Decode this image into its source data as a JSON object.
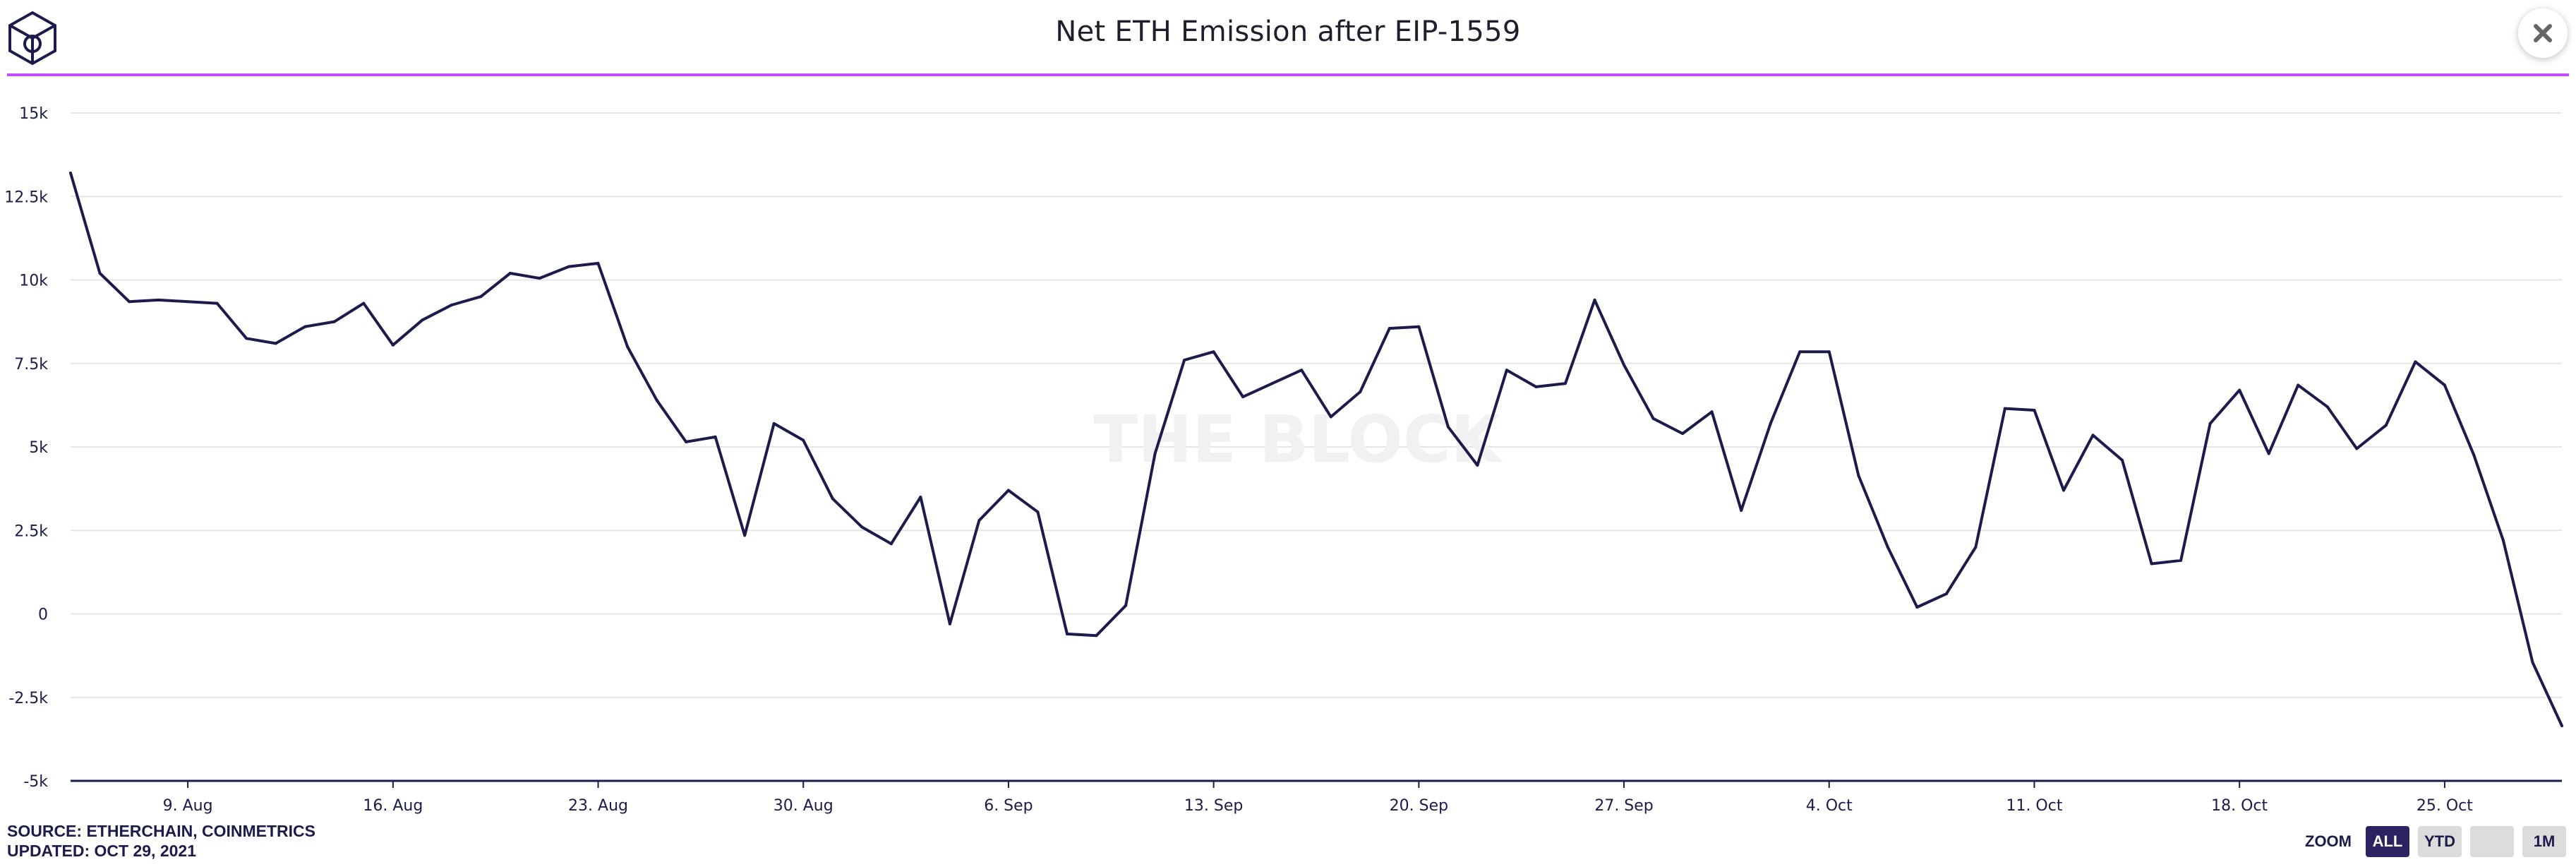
{
  "header": {
    "title": "Net ETH Emission after EIP-1559",
    "close_icon": "close-icon",
    "logo_icon": "the-block-cube-logo-icon"
  },
  "watermark": "THE BLOCK",
  "footer": {
    "source": "SOURCE: ETHERCHAIN, COINMETRICS",
    "updated": "UPDATED: OCT 29, 2021"
  },
  "zoom": {
    "label": "ZOOM",
    "buttons": [
      {
        "label": "ALL",
        "active": true
      },
      {
        "label": "YTD",
        "active": false
      },
      {
        "label": "",
        "active": false
      },
      {
        "label": "1M",
        "active": false
      }
    ]
  },
  "colors": {
    "line": "#1d1b4c",
    "accent": "#c44dff",
    "active_button": "#2a235f"
  },
  "chart_data": {
    "type": "line",
    "title": "Net ETH Emission after EIP-1559",
    "x_start": "2021-08-05",
    "x_end": "2021-10-29",
    "ylim": [
      -5000,
      15000
    ],
    "y_ticks": [
      -5000,
      -2500,
      0,
      2500,
      5000,
      7500,
      10000,
      12500,
      15000
    ],
    "y_tick_labels": [
      "-5k",
      "-2.5k",
      "0",
      "2.5k",
      "5k",
      "7.5k",
      "10k",
      "12.5k",
      "15k"
    ],
    "x_ticks": [
      "2021-08-09",
      "2021-08-16",
      "2021-08-23",
      "2021-08-30",
      "2021-09-06",
      "2021-09-13",
      "2021-09-20",
      "2021-09-27",
      "2021-10-04",
      "2021-10-11",
      "2021-10-18",
      "2021-10-25"
    ],
    "x_tick_labels": [
      "9. Aug",
      "16. Aug",
      "23. Aug",
      "30. Aug",
      "6. Sep",
      "13. Sep",
      "20. Sep",
      "27. Sep",
      "4. Oct",
      "11. Oct",
      "18. Oct",
      "25. Oct"
    ],
    "grid": true,
    "legend": "none",
    "series": [
      {
        "points": [
          [
            "2021-08-05",
            13200
          ],
          [
            "2021-08-06",
            10200
          ],
          [
            "2021-08-07",
            9350
          ],
          [
            "2021-08-08",
            9400
          ],
          [
            "2021-08-09",
            9350
          ],
          [
            "2021-08-10",
            9300
          ],
          [
            "2021-08-11",
            8250
          ],
          [
            "2021-08-12",
            8100
          ],
          [
            "2021-08-13",
            8600
          ],
          [
            "2021-08-14",
            8750
          ],
          [
            "2021-08-15",
            9300
          ],
          [
            "2021-08-16",
            8050
          ],
          [
            "2021-08-17",
            8800
          ],
          [
            "2021-08-18",
            9250
          ],
          [
            "2021-08-19",
            9500
          ],
          [
            "2021-08-20",
            10200
          ],
          [
            "2021-08-21",
            10050
          ],
          [
            "2021-08-22",
            10400
          ],
          [
            "2021-08-23",
            10500
          ],
          [
            "2021-08-24",
            8000
          ],
          [
            "2021-08-25",
            6400
          ],
          [
            "2021-08-26",
            5150
          ],
          [
            "2021-08-27",
            5300
          ],
          [
            "2021-08-28",
            2350
          ],
          [
            "2021-08-29",
            5700
          ],
          [
            "2021-08-30",
            5200
          ],
          [
            "2021-08-31",
            3450
          ],
          [
            "2021-09-01",
            2600
          ],
          [
            "2021-09-02",
            2100
          ],
          [
            "2021-09-03",
            3500
          ],
          [
            "2021-09-04",
            -300
          ],
          [
            "2021-09-05",
            2800
          ],
          [
            "2021-09-06",
            3700
          ],
          [
            "2021-09-07",
            3050
          ],
          [
            "2021-09-08",
            -600
          ],
          [
            "2021-09-09",
            -650
          ],
          [
            "2021-09-10",
            250
          ],
          [
            "2021-09-11",
            4800
          ],
          [
            "2021-09-12",
            7600
          ],
          [
            "2021-09-13",
            7850
          ],
          [
            "2021-09-14",
            6500
          ],
          [
            "2021-09-15",
            6900
          ],
          [
            "2021-09-16",
            7300
          ],
          [
            "2021-09-17",
            5900
          ],
          [
            "2021-09-18",
            6650
          ],
          [
            "2021-09-19",
            8550
          ],
          [
            "2021-09-20",
            8600
          ],
          [
            "2021-09-21",
            5600
          ],
          [
            "2021-09-22",
            4450
          ],
          [
            "2021-09-23",
            7300
          ],
          [
            "2021-09-24",
            6800
          ],
          [
            "2021-09-25",
            6900
          ],
          [
            "2021-09-26",
            9400
          ],
          [
            "2021-09-27",
            7450
          ],
          [
            "2021-09-28",
            5850
          ],
          [
            "2021-09-29",
            5400
          ],
          [
            "2021-09-30",
            6050
          ],
          [
            "2021-10-01",
            3100
          ],
          [
            "2021-10-02",
            5700
          ],
          [
            "2021-10-03",
            7850
          ],
          [
            "2021-10-04",
            7850
          ],
          [
            "2021-10-05",
            4150
          ],
          [
            "2021-10-06",
            2000
          ],
          [
            "2021-10-07",
            200
          ],
          [
            "2021-10-08",
            600
          ],
          [
            "2021-10-09",
            2000
          ],
          [
            "2021-10-10",
            6150
          ],
          [
            "2021-10-11",
            6100
          ],
          [
            "2021-10-12",
            3700
          ],
          [
            "2021-10-13",
            5350
          ],
          [
            "2021-10-14",
            4600
          ],
          [
            "2021-10-15",
            1500
          ],
          [
            "2021-10-16",
            1600
          ],
          [
            "2021-10-17",
            5700
          ],
          [
            "2021-10-18",
            6700
          ],
          [
            "2021-10-19",
            4800
          ],
          [
            "2021-10-20",
            6850
          ],
          [
            "2021-10-21",
            6200
          ],
          [
            "2021-10-22",
            4950
          ],
          [
            "2021-10-23",
            5650
          ],
          [
            "2021-10-24",
            7550
          ],
          [
            "2021-10-25",
            6850
          ],
          [
            "2021-10-26",
            4750
          ],
          [
            "2021-10-27",
            2200
          ],
          [
            "2021-10-28",
            -1450
          ],
          [
            "2021-10-29",
            -3350
          ]
        ]
      }
    ]
  }
}
